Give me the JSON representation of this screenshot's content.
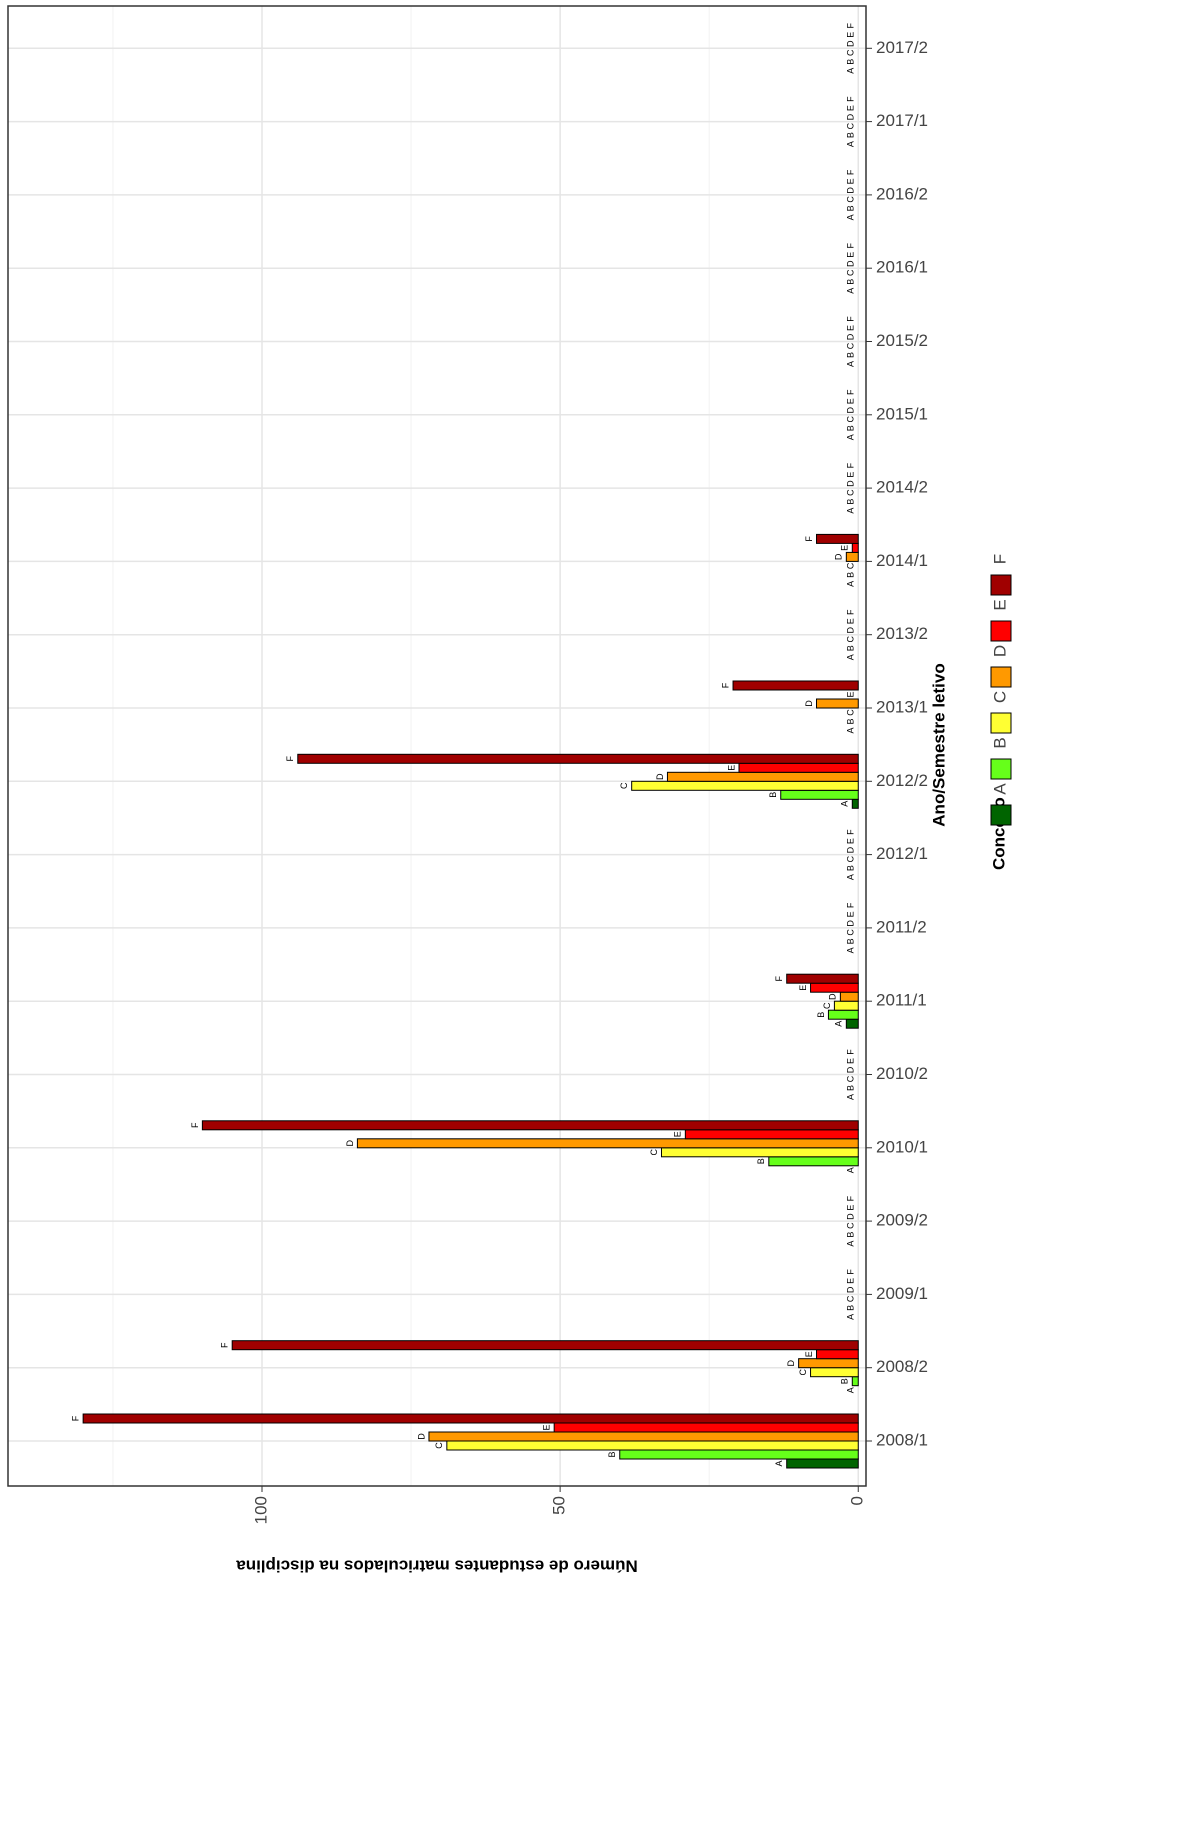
{
  "chart_data": {
    "type": "bar",
    "orientation": "horizontal",
    "x_label": "Ano/Semestre letivo",
    "y_label": "Número de estudantes matriculados na disciplina",
    "legend_title": "Conceito",
    "categories": [
      "2008/1",
      "2008/2",
      "2009/1",
      "2009/2",
      "2010/1",
      "2010/2",
      "2011/1",
      "2011/2",
      "2012/1",
      "2012/2",
      "2013/1",
      "2013/2",
      "2014/1",
      "2014/2",
      "2015/1",
      "2015/2",
      "2016/1",
      "2016/2",
      "2017/1",
      "2017/2"
    ],
    "series": [
      {
        "name": "A",
        "color": "#006400",
        "values": [
          12,
          0,
          0,
          0,
          0,
          0,
          2,
          0,
          0,
          1,
          0,
          0,
          0,
          0,
          0,
          0,
          0,
          0,
          0,
          0
        ]
      },
      {
        "name": "B",
        "color": "#66ff1a",
        "values": [
          40,
          1,
          0,
          0,
          15,
          0,
          5,
          0,
          0,
          13,
          0,
          0,
          0,
          0,
          0,
          0,
          0,
          0,
          0,
          0
        ]
      },
      {
        "name": "C",
        "color": "#ffff33",
        "values": [
          69,
          8,
          0,
          0,
          33,
          0,
          4,
          0,
          0,
          38,
          0,
          0,
          0,
          0,
          0,
          0,
          0,
          0,
          0,
          0
        ]
      },
      {
        "name": "D",
        "color": "#ff9900",
        "values": [
          72,
          10,
          0,
          0,
          84,
          0,
          3,
          0,
          0,
          32,
          7,
          0,
          2,
          0,
          0,
          0,
          0,
          0,
          0,
          0
        ]
      },
      {
        "name": "E",
        "color": "#ff0000",
        "values": [
          51,
          7,
          0,
          0,
          29,
          0,
          8,
          0,
          0,
          20,
          0,
          0,
          1,
          0,
          0,
          0,
          0,
          0,
          0,
          0
        ]
      },
      {
        "name": "F",
        "color": "#a00000",
        "values": [
          130,
          105,
          0,
          0,
          110,
          0,
          12,
          0,
          0,
          94,
          21,
          0,
          7,
          0,
          0,
          0,
          0,
          0,
          0,
          0
        ]
      }
    ],
    "ylim": [
      -1.3,
      142.6
    ],
    "yticks": [
      0,
      50,
      100
    ],
    "minor_yticks": [
      25,
      75,
      125
    ],
    "grid": true
  }
}
